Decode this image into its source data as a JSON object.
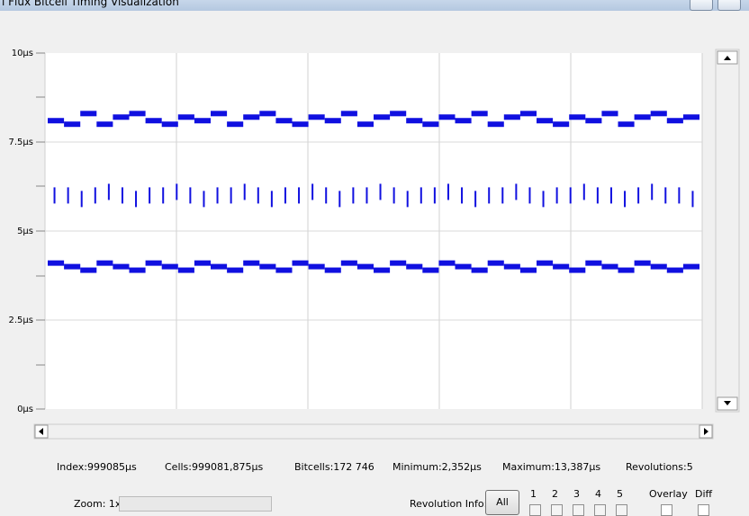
{
  "window_title": "l Flux Bitcell Timing Visualization",
  "chart_data": {
    "type": "dots",
    "ylim": [
      0,
      10
    ],
    "yticks": [
      {
        "value": 0,
        "label": "0µs"
      },
      {
        "value": 2.5,
        "label": "2.5µs"
      },
      {
        "value": 5,
        "label": "5µs"
      },
      {
        "value": 7.5,
        "label": "7.5µs"
      },
      {
        "value": 10,
        "label": "10µs"
      }
    ],
    "grid": true,
    "series": [
      {
        "color": "#1010e0",
        "marker": "segment",
        "values": [
          8.1,
          8.0,
          8.3,
          8.0,
          8.2,
          8.3,
          8.1,
          8.0,
          8.2,
          8.1,
          8.3,
          8.0,
          8.2,
          8.3,
          8.1,
          8.0,
          8.2,
          8.1,
          8.3,
          8.0,
          8.2,
          8.3,
          8.1,
          8.0,
          8.2,
          8.1,
          8.3,
          8.0,
          8.2,
          8.3,
          8.1,
          8.0,
          8.2,
          8.1,
          8.3,
          8.0,
          8.2,
          8.3,
          8.1,
          8.2
        ]
      },
      {
        "color": "#1010e0",
        "marker": "dash",
        "values": [
          6.0,
          6.0,
          5.9,
          6.0,
          6.1,
          6.0,
          5.9,
          6.0,
          6.0,
          6.1,
          6.0,
          5.9,
          6.0,
          6.0,
          6.1,
          6.0,
          5.9,
          6.0,
          6.0,
          6.1,
          6.0,
          5.9,
          6.0,
          6.0,
          6.1,
          6.0,
          5.9,
          6.0,
          6.0,
          6.1,
          6.0,
          5.9,
          6.0,
          6.0,
          6.1,
          6.0,
          5.9,
          6.0,
          6.0,
          6.1,
          6.0,
          6.0,
          5.9,
          6.0,
          6.1,
          6.0,
          6.0,
          5.9
        ]
      },
      {
        "color": "#1010e0",
        "marker": "segment",
        "values": [
          4.1,
          4.0,
          3.9,
          4.1,
          4.0,
          3.9,
          4.1,
          4.0,
          3.9,
          4.1,
          4.0,
          3.9,
          4.1,
          4.0,
          3.9,
          4.1,
          4.0,
          3.9,
          4.1,
          4.0,
          3.9,
          4.1,
          4.0,
          3.9,
          4.1,
          4.0,
          3.9,
          4.1,
          4.0,
          3.9,
          4.1,
          4.0,
          3.9,
          4.1,
          4.0,
          3.9,
          4.1,
          4.0,
          3.9,
          4.0
        ]
      }
    ]
  },
  "stats": [
    "Index:999085µs",
    "Cells:999081,875µs",
    "Bitcells:172 746",
    "Minimum:2,352µs",
    "Maximum:13,387µs",
    "Revolutions:5"
  ],
  "controls": {
    "zoom": "Zoom: 1x",
    "revolution_info": "Revolution Info:",
    "all_button": "All",
    "revolutions": [
      "1",
      "2",
      "3",
      "4",
      "5"
    ],
    "overlay": "Overlay",
    "diff": "Diff"
  }
}
